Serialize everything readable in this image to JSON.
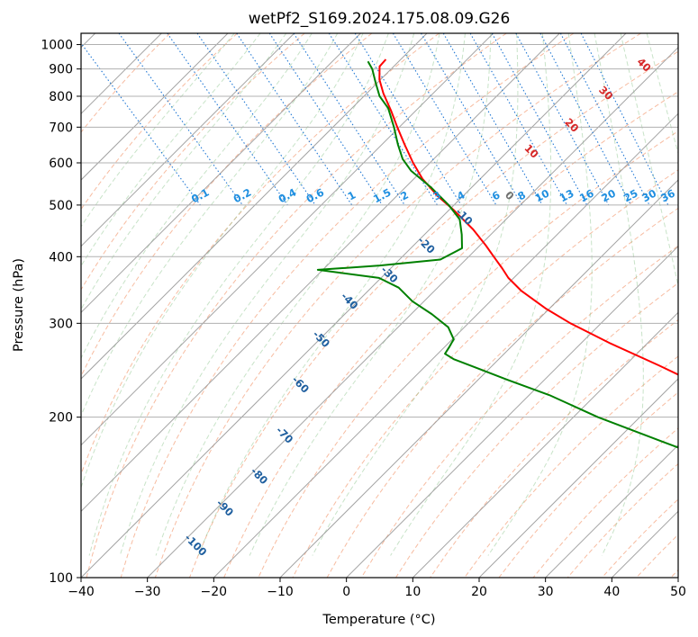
{
  "chart_data": {
    "type": "line",
    "title": "wetPf2_S169.2024.175.08.09.G26",
    "xlabel": "Temperature (°C)",
    "ylabel": "Pressure (hPa)",
    "xlim": [
      -40,
      50
    ],
    "ylim": [
      1050,
      100
    ],
    "y_scale": "log",
    "grid": true,
    "x_ticks": [
      -40,
      -30,
      -20,
      -10,
      0,
      10,
      20,
      30,
      40,
      50
    ],
    "y_ticks": [
      100,
      200,
      300,
      400,
      500,
      600,
      700,
      800,
      900,
      1000
    ],
    "skew_isotherm_labels": [
      "-100",
      "-90",
      "-80",
      "-70",
      "-60",
      "-50",
      "-40",
      "-30",
      "-20",
      "-10",
      "0",
      "10",
      "20",
      "30",
      "40"
    ],
    "mixing_ratio_labels": [
      "0.1",
      "0.2",
      "0.4",
      "0.6",
      "1",
      "1.5",
      "2",
      "3",
      "4",
      "6",
      "8",
      "10",
      "13",
      "16",
      "20",
      "25",
      "30",
      "36"
    ],
    "series": [
      {
        "role": "temperature",
        "color": "#ff0000",
        "points": [
          [
            2.0,
            938
          ],
          [
            0.0,
            910
          ],
          [
            -2.0,
            860
          ],
          [
            -3.5,
            810
          ],
          [
            -5.0,
            750
          ],
          [
            -6.5,
            700
          ],
          [
            -8.0,
            650
          ],
          [
            -9.5,
            600
          ],
          [
            -10.5,
            560
          ],
          [
            -10.8,
            520
          ],
          [
            -10.5,
            490
          ],
          [
            -10.5,
            450
          ],
          [
            -11.0,
            420
          ],
          [
            -11.5,
            400
          ],
          [
            -12.0,
            380
          ],
          [
            -12.5,
            365
          ],
          [
            -12.5,
            345
          ],
          [
            -11.5,
            320
          ],
          [
            -10.0,
            300
          ],
          [
            -7.0,
            275
          ],
          [
            -3.0,
            250
          ],
          [
            1.0,
            225
          ],
          [
            4.0,
            200
          ],
          [
            7.5,
            175
          ],
          [
            10.0,
            160
          ],
          [
            11.5,
            148
          ],
          [
            12.5,
            138
          ],
          [
            14.0,
            127
          ],
          [
            16.5,
            117
          ],
          [
            20.0,
            108
          ],
          [
            23.5,
            100
          ]
        ]
      },
      {
        "role": "dewpoint",
        "color": "#008000",
        "points": [
          [
            -1.0,
            930
          ],
          [
            -1.5,
            900
          ],
          [
            -3.0,
            850
          ],
          [
            -4.5,
            800
          ],
          [
            -5.0,
            760
          ],
          [
            -7.0,
            700
          ],
          [
            -9.0,
            650
          ],
          [
            -10.5,
            610
          ],
          [
            -11.0,
            580
          ],
          [
            -10.5,
            540
          ],
          [
            -10.5,
            500
          ],
          [
            -11.0,
            470
          ],
          [
            -13.0,
            440
          ],
          [
            -15.0,
            415
          ],
          [
            -20.0,
            395
          ],
          [
            -30.0,
            385
          ],
          [
            -40.0,
            378
          ],
          [
            -37.0,
            373
          ],
          [
            -32.0,
            365
          ],
          [
            -30.5,
            350
          ],
          [
            -30.5,
            330
          ],
          [
            -29.5,
            312
          ],
          [
            -29.0,
            295
          ],
          [
            -30.0,
            280
          ],
          [
            -32.0,
            270
          ],
          [
            -33.5,
            263
          ],
          [
            -33.0,
            257
          ],
          [
            -31.0,
            248
          ],
          [
            -28.0,
            235
          ],
          [
            -24.0,
            220
          ],
          [
            -20.0,
            200
          ],
          [
            -14.0,
            180
          ],
          [
            -9.0,
            165
          ],
          [
            -5.0,
            155
          ],
          [
            -2.0,
            145
          ],
          [
            0.5,
            135
          ],
          [
            2.5,
            125
          ],
          [
            5.0,
            115
          ],
          [
            8.0,
            106
          ],
          [
            10.0,
            100
          ]
        ]
      }
    ]
  }
}
